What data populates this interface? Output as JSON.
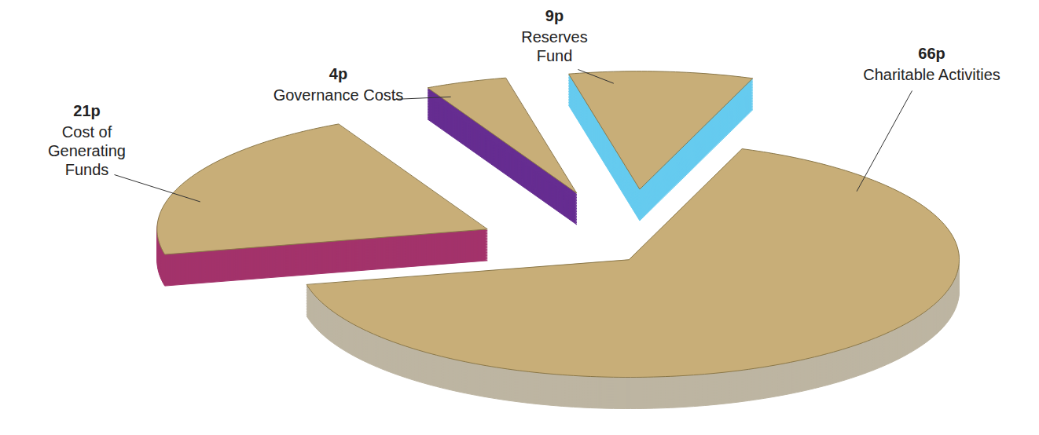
{
  "chart_data": {
    "type": "pie",
    "categories": [
      "Charitable Activities",
      "Cost of Generating Funds",
      "Governance Costs",
      "Reserves Fund"
    ],
    "values": [
      66,
      21,
      4,
      9
    ],
    "value_labels": [
      "66p",
      "21p",
      "4p",
      "9p"
    ],
    "colors": [
      "#bdb5a2",
      "#a3336b",
      "#662d91",
      "#66cbef"
    ],
    "data_labels": true
  }
}
